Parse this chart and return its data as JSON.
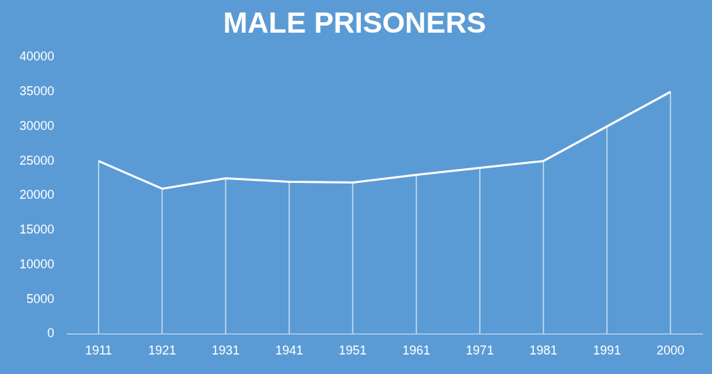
{
  "chart_data": {
    "type": "line",
    "title": "MALE PRISONERS",
    "categories": [
      "1911",
      "1921",
      "1931",
      "1941",
      "1951",
      "1961",
      "1971",
      "1981",
      "1991",
      "2000"
    ],
    "series": [
      {
        "color": "#ffffff",
        "values": [
          25000,
          21000,
          22500,
          22000,
          21900,
          23000,
          24000,
          25000,
          30000,
          35000
        ]
      },
      {
        "type": "bar",
        "color": "#c5dcf1",
        "values": [
          25000,
          21000,
          22500,
          22000,
          21900,
          23000,
          24000,
          25000,
          30000,
          35000
        ]
      }
    ],
    "ylim": [
      0,
      40000
    ],
    "yticks": [
      0,
      5000,
      10000,
      15000,
      20000,
      25000,
      30000,
      35000,
      40000
    ],
    "grid": false,
    "legend": false
  }
}
